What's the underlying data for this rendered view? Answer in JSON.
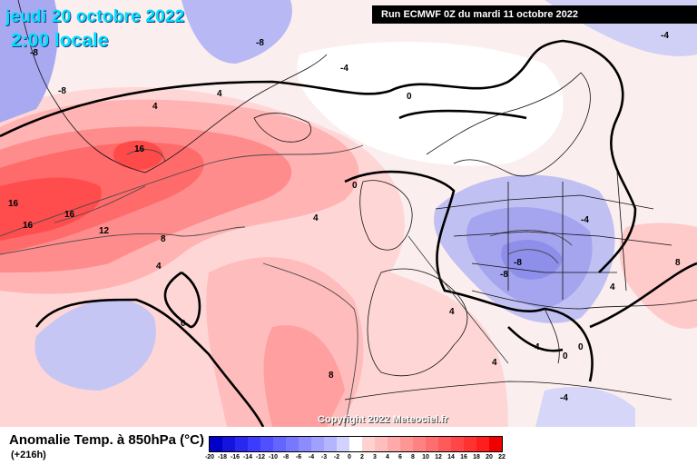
{
  "header": {
    "date_title": "jeudi 20 octobre 2022",
    "time_title": "2:00 locale",
    "run_info": "Run ECMWF 0Z du mardi 11 octobre 2022"
  },
  "footer": {
    "variable": "Anomalie Temp. à 850hPa (°C)",
    "lead_time": "(+216h)",
    "copyright": "Copyright 2022 Meteociel.fr"
  },
  "colorbar": {
    "ticks": [
      "-20",
      "-18",
      "-16",
      "-14",
      "-12",
      "-10",
      "-8",
      "-6",
      "-4",
      "-3",
      "-2",
      "0",
      "2",
      "3",
      "4",
      "6",
      "8",
      "10",
      "12",
      "14",
      "16",
      "18",
      "20",
      "22"
    ],
    "colors": [
      "#0000c8",
      "#1414dc",
      "#2828f0",
      "#3c3cff",
      "#5050ff",
      "#6464ff",
      "#7878ff",
      "#8c8cff",
      "#a0a0ff",
      "#b4b4ff",
      "#d2d2ff",
      "#ffffff",
      "#ffd2d2",
      "#ffbebe",
      "#ffaaaa",
      "#ff9696",
      "#ff8282",
      "#ff6e6e",
      "#ff5a5a",
      "#ff4646",
      "#ff3232",
      "#ff1e1e",
      "#f00000"
    ]
  },
  "contour_labels": [
    "16",
    "16",
    "16",
    "16",
    "12",
    "8",
    "4",
    "4",
    "4",
    "4",
    "0",
    "0",
    "0",
    "0",
    "-4",
    "-4",
    "-4",
    "-8",
    "-8",
    "-8",
    "-8",
    "-8",
    "8",
    "8",
    "4",
    "4",
    "4",
    "4",
    "0",
    "-4"
  ]
}
